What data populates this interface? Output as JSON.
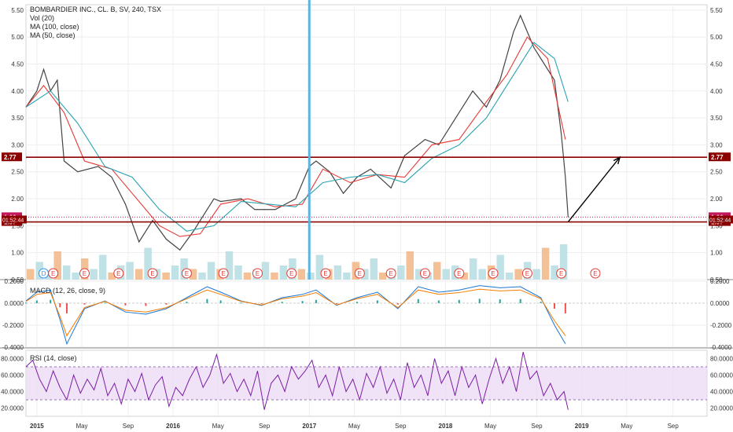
{
  "chart_data": {
    "type": "line",
    "title": "BOMBARDIER INC., CL. B, SV, 240, TSX",
    "indicators": [
      "Vol (20)",
      "MA (100, close)",
      "MA (50, close)"
    ],
    "time_labels": [
      "2015",
      "May",
      "Sep",
      "2016",
      "May",
      "Sep",
      "2017",
      "May",
      "Sep",
      "2018",
      "May",
      "Sep",
      "2019",
      "May",
      "Sep"
    ],
    "price_axis": {
      "ticks": [
        "5.50",
        "5.00",
        "4.50",
        "4.00",
        "3.50",
        "3.00",
        "2.50",
        "2.00",
        "1.50",
        "1.00",
        "0.50"
      ],
      "ylim": [
        0.5,
        5.6
      ]
    },
    "levels": [
      {
        "value": 2.77,
        "label": "2.77",
        "color": "#8b0000"
      },
      {
        "value": 1.66,
        "label": "1.66",
        "color": "#c2185b"
      },
      {
        "value": 1.57,
        "label": "1.57",
        "color": "#8b0000"
      }
    ],
    "countdown_label": "01:52:44",
    "series": [
      {
        "name": "Price",
        "color": "#444444",
        "x": [
          2014.92,
          2015.0,
          2015.05,
          2015.1,
          2015.15,
          2015.2,
          2015.3,
          2015.45,
          2015.55,
          2015.65,
          2015.75,
          2015.85,
          2015.95,
          2016.05,
          2016.15,
          2016.3,
          2016.35,
          2016.5,
          2016.6,
          2016.75,
          2016.9,
          2017.0,
          2017.05,
          2017.15,
          2017.25,
          2017.35,
          2017.45,
          2017.6,
          2017.7,
          2017.85,
          2017.95,
          2018.05,
          2018.2,
          2018.3,
          2018.4,
          2018.5,
          2018.55,
          2018.65,
          2018.7,
          2018.8,
          2018.85,
          2018.88,
          2018.9
        ],
        "y": [
          3.7,
          4.0,
          4.4,
          4.0,
          4.2,
          2.7,
          2.5,
          2.6,
          2.4,
          1.9,
          1.2,
          1.6,
          1.25,
          1.05,
          1.4,
          2.0,
          1.95,
          2.0,
          1.8,
          1.8,
          2.0,
          2.6,
          2.7,
          2.5,
          2.1,
          2.4,
          2.55,
          2.2,
          2.8,
          3.1,
          3.0,
          3.4,
          4.0,
          3.7,
          4.2,
          5.1,
          5.4,
          4.8,
          4.6,
          4.2,
          3.2,
          2.4,
          1.66
        ]
      },
      {
        "name": "MA (50, close)",
        "color": "#e53935",
        "x": [
          2014.92,
          2015.05,
          2015.2,
          2015.35,
          2015.55,
          2015.7,
          2015.9,
          2016.05,
          2016.2,
          2016.35,
          2016.55,
          2016.75,
          2016.95,
          2017.1,
          2017.3,
          2017.5,
          2017.7,
          2017.9,
          2018.1,
          2018.3,
          2018.45,
          2018.6,
          2018.75,
          2018.88
        ],
        "y": [
          3.7,
          4.1,
          3.6,
          2.7,
          2.55,
          2.1,
          1.5,
          1.3,
          1.35,
          1.9,
          2.0,
          1.85,
          1.9,
          2.55,
          2.3,
          2.45,
          2.4,
          3.0,
          3.1,
          3.8,
          4.3,
          5.0,
          4.6,
          3.1
        ]
      },
      {
        "name": "MA (100, close)",
        "color": "#29a3b0",
        "x": [
          2014.92,
          2015.1,
          2015.3,
          2015.5,
          2015.7,
          2015.9,
          2016.1,
          2016.3,
          2016.5,
          2016.7,
          2016.9,
          2017.1,
          2017.3,
          2017.5,
          2017.7,
          2017.9,
          2018.1,
          2018.3,
          2018.5,
          2018.65,
          2018.8,
          2018.9
        ],
        "y": [
          3.7,
          4.0,
          3.4,
          2.6,
          2.4,
          1.8,
          1.4,
          1.5,
          1.95,
          1.9,
          1.85,
          2.3,
          2.4,
          2.45,
          2.3,
          2.75,
          3.0,
          3.5,
          4.3,
          4.9,
          4.6,
          3.8
        ]
      }
    ],
    "volume_bars": [
      0.3,
      0.5,
      0.2,
      0.8,
      0.4,
      0.2,
      0.6,
      0.3,
      0.7,
      0.2,
      0.4,
      0.5,
      0.3,
      0.9,
      0.3,
      0.2,
      0.4,
      0.6,
      0.3,
      0.2,
      0.5,
      0.3,
      0.8,
      0.4,
      0.2,
      0.3,
      0.5,
      0.2,
      0.4,
      0.6,
      0.3,
      0.2,
      0.7,
      0.3,
      0.4,
      0.2,
      0.5,
      0.3,
      0.6,
      0.2,
      0.3,
      0.4,
      0.8,
      0.3,
      0.2,
      0.5,
      0.3,
      0.4,
      0.2,
      0.6,
      0.3,
      0.4,
      0.7,
      0.2,
      0.3,
      0.5,
      0.3,
      0.9,
      0.4,
      1.0
    ],
    "event_markers": [
      {
        "x": 2015.05,
        "label": "D",
        "color": "#2196f3"
      },
      {
        "x": 2015.12,
        "label": "E",
        "color": "#e53935"
      },
      {
        "x": 2015.35,
        "label": "E",
        "color": "#e53935"
      },
      {
        "x": 2015.6,
        "label": "E",
        "color": "#e53935"
      },
      {
        "x": 2015.85,
        "label": "E",
        "color": "#e53935"
      },
      {
        "x": 2016.1,
        "label": "E",
        "color": "#e53935"
      },
      {
        "x": 2016.37,
        "label": "E",
        "color": "#e53935"
      },
      {
        "x": 2016.62,
        "label": "E",
        "color": "#e53935"
      },
      {
        "x": 2016.87,
        "label": "E",
        "color": "#e53935"
      },
      {
        "x": 2017.12,
        "label": "E",
        "color": "#e53935"
      },
      {
        "x": 2017.37,
        "label": "E",
        "color": "#e53935"
      },
      {
        "x": 2017.6,
        "label": "E",
        "color": "#e53935"
      },
      {
        "x": 2017.85,
        "label": "E",
        "color": "#e53935"
      },
      {
        "x": 2018.1,
        "label": "E",
        "color": "#e53935"
      },
      {
        "x": 2018.35,
        "label": "E",
        "color": "#e53935"
      },
      {
        "x": 2018.6,
        "label": "E",
        "color": "#e53935"
      },
      {
        "x": 2018.85,
        "label": "E",
        "color": "#e53935"
      },
      {
        "x": 2019.1,
        "label": "E",
        "color": "#e53935"
      }
    ],
    "vertical_marker": {
      "x": 2017.0,
      "color": "#5bb3e0"
    },
    "arrow": {
      "x0": 2018.9,
      "y0": 1.57,
      "x1": 2019.28,
      "y1": 2.77
    },
    "macd": {
      "title": "MACD (12, 26, close, 9)",
      "ticks": [
        "0.2000",
        "0.0000",
        "-0.2000",
        "-0.4000"
      ],
      "ylim": [
        -0.4,
        0.2
      ],
      "x": [
        2014.92,
        2015.0,
        2015.1,
        2015.17,
        2015.22,
        2015.35,
        2015.5,
        2015.65,
        2015.8,
        2015.95,
        2016.1,
        2016.25,
        2016.35,
        2016.5,
        2016.65,
        2016.8,
        2016.95,
        2017.05,
        2017.2,
        2017.35,
        2017.5,
        2017.65,
        2017.8,
        2017.95,
        2018.1,
        2018.25,
        2018.4,
        2018.55,
        2018.7,
        2018.8,
        2018.88
      ],
      "y": [
        0.02,
        0.1,
        0.12,
        -0.15,
        -0.37,
        -0.05,
        0.02,
        -0.08,
        -0.1,
        -0.05,
        0.05,
        0.15,
        0.1,
        0.02,
        -0.02,
        0.05,
        0.08,
        0.12,
        -0.02,
        0.05,
        0.1,
        -0.05,
        0.15,
        0.1,
        0.12,
        0.16,
        0.14,
        0.15,
        0.05,
        -0.2,
        -0.37
      ]
    },
    "rsi": {
      "title": "RSI (14, close)",
      "ticks": [
        "80.0000",
        "60.0000",
        "40.0000",
        "20.0000"
      ],
      "ylim": [
        10,
        90
      ],
      "band": [
        30,
        70
      ],
      "x": [
        2014.92,
        2014.97,
        2015.02,
        2015.07,
        2015.12,
        2015.17,
        2015.22,
        2015.27,
        2015.32,
        2015.37,
        2015.42,
        2015.47,
        2015.52,
        2015.57,
        2015.62,
        2015.67,
        2015.72,
        2015.77,
        2015.82,
        2015.87,
        2015.92,
        2015.97,
        2016.02,
        2016.07,
        2016.12,
        2016.17,
        2016.22,
        2016.27,
        2016.32,
        2016.37,
        2016.42,
        2016.47,
        2016.52,
        2016.57,
        2016.62,
        2016.67,
        2016.72,
        2016.77,
        2016.82,
        2016.87,
        2016.92,
        2016.97,
        2017.02,
        2017.07,
        2017.12,
        2017.17,
        2017.22,
        2017.27,
        2017.32,
        2017.37,
        2017.42,
        2017.47,
        2017.52,
        2017.57,
        2017.62,
        2017.67,
        2017.72,
        2017.77,
        2017.82,
        2017.87,
        2017.92,
        2017.97,
        2018.02,
        2018.07,
        2018.12,
        2018.17,
        2018.22,
        2018.27,
        2018.32,
        2018.37,
        2018.42,
        2018.47,
        2018.52,
        2018.57,
        2018.62,
        2018.67,
        2018.72,
        2018.77,
        2018.82,
        2018.87,
        2018.9
      ],
      "y": [
        70,
        78,
        55,
        40,
        65,
        45,
        30,
        60,
        38,
        55,
        42,
        68,
        35,
        50,
        25,
        55,
        40,
        62,
        30,
        48,
        58,
        22,
        45,
        35,
        55,
        70,
        45,
        60,
        85,
        50,
        62,
        40,
        55,
        35,
        65,
        18,
        50,
        60,
        40,
        70,
        55,
        65,
        78,
        45,
        60,
        35,
        70,
        40,
        55,
        30,
        62,
        45,
        70,
        38,
        55,
        30,
        75,
        45,
        60,
        35,
        80,
        50,
        65,
        35,
        70,
        45,
        60,
        25,
        55,
        80,
        50,
        70,
        40,
        88,
        55,
        65,
        35,
        50,
        30,
        40,
        18
      ]
    }
  }
}
